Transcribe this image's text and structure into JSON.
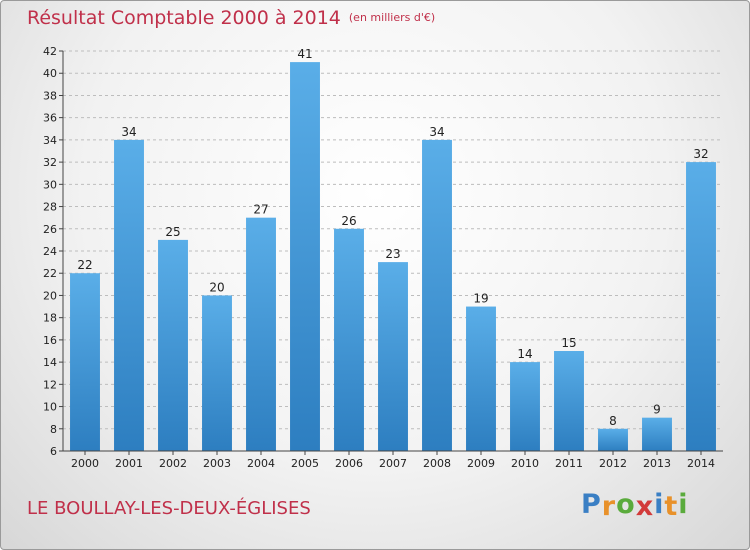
{
  "header": {
    "title": "Résultat Comptable 2000 à 2014",
    "unit": "(en milliers d'€)"
  },
  "footer": {
    "commune": "LE BOULLAY-LES-DEUX-ÉGLISES",
    "logo_letters": [
      "P",
      "r",
      "o",
      "x",
      "i",
      "t",
      "i"
    ],
    "logo_colors": [
      "#3a7fc4",
      "#e8912a",
      "#5aab3c",
      "#d23a3a",
      "#3a7fc4",
      "#e8912a",
      "#5aab3c"
    ]
  },
  "colors": {
    "bar_light": "#5aaee8",
    "bar_dark": "#2d7ec0",
    "grid": "#bdbdbd",
    "title": "#c0304a"
  },
  "chart_data": {
    "type": "bar",
    "categories": [
      "2000",
      "2001",
      "2002",
      "2003",
      "2004",
      "2005",
      "2006",
      "2007",
      "2008",
      "2009",
      "2010",
      "2011",
      "2012",
      "2013",
      "2014"
    ],
    "values": [
      22,
      34,
      25,
      20,
      27,
      41,
      26,
      23,
      34,
      19,
      14,
      15,
      8,
      9,
      32
    ],
    "title": "Résultat Comptable 2000 à 2014",
    "xlabel": "",
    "ylabel": "",
    "ylim": [
      6,
      42
    ],
    "yticks": [
      6,
      8,
      10,
      12,
      14,
      16,
      18,
      20,
      22,
      24,
      26,
      28,
      30,
      32,
      34,
      36,
      38,
      40,
      42
    ],
    "grid": true,
    "legend": "none"
  }
}
